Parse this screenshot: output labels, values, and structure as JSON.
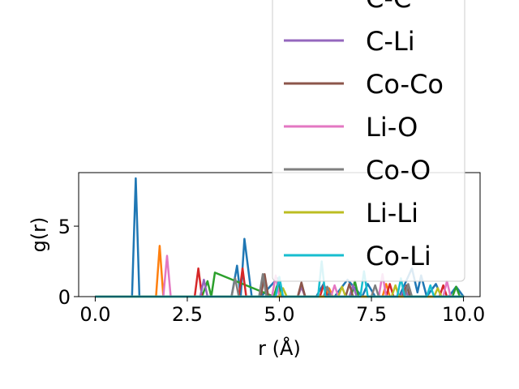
{
  "chart_data": {
    "type": "line",
    "title": "",
    "xlabel": "r (Å)",
    "ylabel": "g(r)",
    "xlim": [
      -0.45,
      10.45
    ],
    "ylim": [
      0,
      8.8
    ],
    "xticks": [
      0.0,
      2.5,
      5.0,
      7.5,
      10.0
    ],
    "xtick_labels": [
      "0.0",
      "2.5",
      "5.0",
      "7.5",
      "10.0"
    ],
    "yticks": [
      0,
      5
    ],
    "ytick_labels": [
      "0",
      "5"
    ],
    "grid": false,
    "legend_placement": "upper-right, overflowing above the axes",
    "series": [
      {
        "name": "",
        "color": "#1f77b4",
        "x": [
          0,
          1.0,
          1.1,
          1.2,
          3.7,
          3.85,
          3.95,
          4.05,
          4.25,
          4.5,
          4.95,
          5.05,
          5.6,
          6.0,
          6.2,
          6.35,
          6.5,
          6.85,
          7.25,
          7.4,
          7.6,
          8.25,
          8.6,
          8.75,
          8.85,
          9.0,
          9.25,
          9.4,
          9.6,
          9.8,
          10.0
        ],
        "y": [
          0,
          0,
          8.4,
          0,
          0,
          2.2,
          0,
          4.1,
          0,
          0,
          1.3,
          0,
          0,
          0,
          0.9,
          0,
          0,
          1.2,
          0,
          0.9,
          0,
          0,
          2.0,
          0.3,
          1.5,
          0,
          0.9,
          0,
          0,
          0.7,
          0
        ]
      },
      {
        "name": "",
        "color": "#ff7f0e",
        "x": [
          0,
          1.65,
          1.75,
          1.85,
          4.0,
          5.5,
          5.6,
          5.7,
          6.25,
          6.35,
          6.45,
          7.8,
          7.9,
          8.0,
          10.0
        ],
        "y": [
          0,
          0,
          3.6,
          0,
          0,
          0,
          0.7,
          0,
          0,
          0.6,
          0,
          0,
          0.9,
          0,
          0
        ]
      },
      {
        "name": "",
        "color": "#2ca02c",
        "x": [
          0,
          2.9,
          3.05,
          3.15,
          3.25,
          4.85,
          4.95,
          5.05,
          6.95,
          7.05,
          7.15,
          9.7,
          9.8,
          9.9,
          10.0
        ],
        "y": [
          0,
          0,
          1.1,
          0,
          1.7,
          0,
          0.9,
          0,
          0,
          1.1,
          0,
          0,
          0.7,
          0,
          0
        ]
      },
      {
        "name": "C-C",
        "color": "#d62728",
        "x": [
          0,
          2.7,
          2.8,
          2.9,
          3.9,
          4.0,
          4.1,
          5.5,
          5.6,
          5.7,
          6.1,
          6.2,
          6.3,
          7.9,
          8.0,
          8.1,
          9.35,
          9.45,
          9.55,
          10.0
        ],
        "y": [
          0,
          0,
          2.0,
          0,
          0,
          2.0,
          0,
          0,
          0.9,
          0,
          0,
          0.8,
          0,
          0,
          0.9,
          0,
          0,
          0.8,
          0,
          0
        ]
      },
      {
        "name": "C-Li",
        "color": "#9467bd",
        "x": [
          0,
          2.85,
          2.95,
          3.05,
          5.5,
          5.6,
          5.7,
          6.9,
          7.0,
          7.1,
          8.3,
          8.4,
          8.5,
          10.0
        ],
        "y": [
          0,
          0,
          1.2,
          0,
          0,
          0.7,
          0,
          0,
          0.8,
          0,
          0,
          0.6,
          0,
          0
        ]
      },
      {
        "name": "Co-Co",
        "color": "#8c564b",
        "x": [
          0,
          4.5,
          4.6,
          4.7,
          5.5,
          5.6,
          5.7,
          6.8,
          6.9,
          7.0,
          8.35,
          8.45,
          8.55,
          10.0
        ],
        "y": [
          0,
          0,
          1.6,
          0,
          0,
          1.0,
          0,
          0,
          0.9,
          0,
          0,
          0.8,
          0,
          0
        ]
      },
      {
        "name": "Li-O",
        "color": "#e377c2",
        "x": [
          0,
          1.85,
          1.95,
          2.05,
          4.8,
          4.9,
          5.0,
          6.4,
          6.5,
          6.6,
          7.7,
          7.8,
          7.9,
          9.45,
          9.55,
          9.65,
          10.0
        ],
        "y": [
          0,
          0,
          2.9,
          0,
          0,
          1.5,
          0,
          0,
          0.8,
          0,
          0,
          1.6,
          0,
          0,
          1.1,
          0,
          0
        ]
      },
      {
        "name": "Co-O",
        "color": "#7f7f7f",
        "x": [
          0,
          3.7,
          3.8,
          3.9,
          4.45,
          4.55,
          4.65,
          6.2,
          6.3,
          6.4,
          7.5,
          7.6,
          7.7,
          8.4,
          8.5,
          8.6,
          10.0
        ],
        "y": [
          0,
          0,
          1.3,
          0,
          0,
          1.6,
          0,
          0,
          0.7,
          0,
          0,
          0.8,
          0,
          0,
          0.9,
          0,
          0
        ]
      },
      {
        "name": "Li-Li",
        "color": "#bcbd22",
        "x": [
          0,
          5.0,
          5.1,
          5.2,
          6.6,
          6.7,
          6.8,
          8.05,
          8.15,
          8.25,
          9.2,
          9.3,
          9.4,
          10.0
        ],
        "y": [
          0,
          0,
          0.6,
          0,
          0,
          0.7,
          0,
          0,
          0.8,
          0,
          0,
          0.6,
          0,
          0
        ]
      },
      {
        "name": "Co-Li",
        "color": "#17becf",
        "x": [
          0,
          4.9,
          5.0,
          5.1,
          6.05,
          6.15,
          6.25,
          7.2,
          7.3,
          7.4,
          8.2,
          8.3,
          8.4,
          9.0,
          9.1,
          9.2,
          10.0
        ],
        "y": [
          0,
          0,
          1.4,
          0,
          0,
          2.5,
          0,
          0,
          1.8,
          0,
          0,
          1.3,
          0,
          0,
          0.8,
          0,
          0
        ]
      }
    ]
  }
}
